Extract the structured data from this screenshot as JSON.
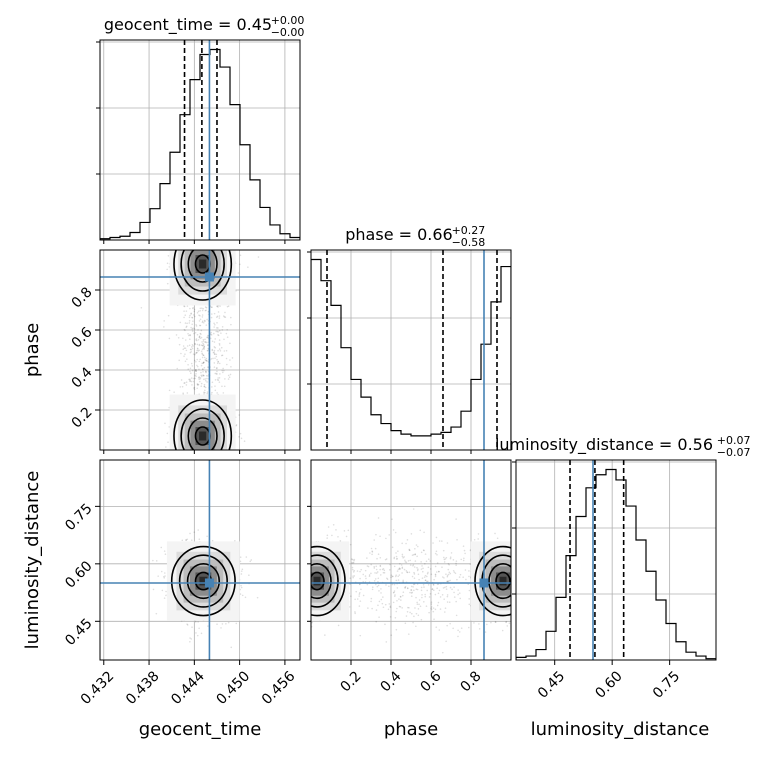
{
  "chart_data": {
    "type": "corner",
    "params": [
      "geocent_time",
      "phase",
      "luminosity_distance"
    ],
    "labels": {
      "geocent_time": "geocent_time",
      "phase": "phase",
      "luminosity_distance": "luminosity_distance"
    },
    "ranges": {
      "geocent_time": [
        0.4315,
        0.458
      ],
      "phase": [
        0.0,
        1.0
      ],
      "luminosity_distance": [
        0.349,
        0.871
      ]
    },
    "ticks": {
      "geocent_time": [
        0.432,
        0.438,
        0.444,
        0.45,
        0.456
      ],
      "phase": [
        0.2,
        0.4,
        0.6,
        0.8
      ],
      "luminosity_distance": [
        0.45,
        0.6,
        0.75
      ]
    },
    "tick_labels": {
      "geocent_time": [
        "0.432",
        "0.438",
        "0.444",
        "0.450",
        "0.456"
      ],
      "phase": [
        "0.2",
        "0.4",
        "0.6",
        "0.8"
      ],
      "luminosity_distance": [
        "0.45",
        "0.60",
        "0.75"
      ]
    },
    "truths": {
      "geocent_time": 0.446,
      "phase": 0.865,
      "luminosity_distance": 0.55
    },
    "quantiles": {
      "geocent_time": [
        0.4427,
        0.445,
        0.447
      ],
      "phase": [
        0.08,
        0.66,
        0.93
      ],
      "luminosity_distance": [
        0.49,
        0.555,
        0.63
      ]
    },
    "titles": {
      "geocent_time": {
        "base": "geocent_time = 0.45",
        "plus": "+0.00",
        "minus": "−0.00"
      },
      "phase": {
        "base": "phase = 0.66",
        "plus": "+0.27",
        "minus": "−0.58"
      },
      "luminosity_distance": {
        "base": "luminosity_distance = 0.56",
        "plus": "+0.07",
        "minus": "−0.07"
      }
    },
    "histograms": {
      "geocent_time": [
        1,
        2,
        3,
        6,
        14,
        25,
        45,
        70,
        100,
        128,
        148,
        152,
        138,
        108,
        76,
        48,
        26,
        12,
        5,
        2
      ],
      "phase": [
        108,
        96,
        82,
        58,
        40,
        30,
        20,
        15,
        11,
        9,
        8,
        8,
        9,
        10,
        13,
        22,
        40,
        60,
        84,
        104
      ],
      "luminosity_distance": [
        2,
        3,
        8,
        22,
        48,
        80,
        110,
        132,
        142,
        146,
        138,
        118,
        92,
        68,
        46,
        28,
        14,
        6,
        3,
        1
      ]
    },
    "grid": true,
    "colors": {
      "truth": "#4682b4",
      "contour": "#000000",
      "hist": "#000000"
    }
  }
}
